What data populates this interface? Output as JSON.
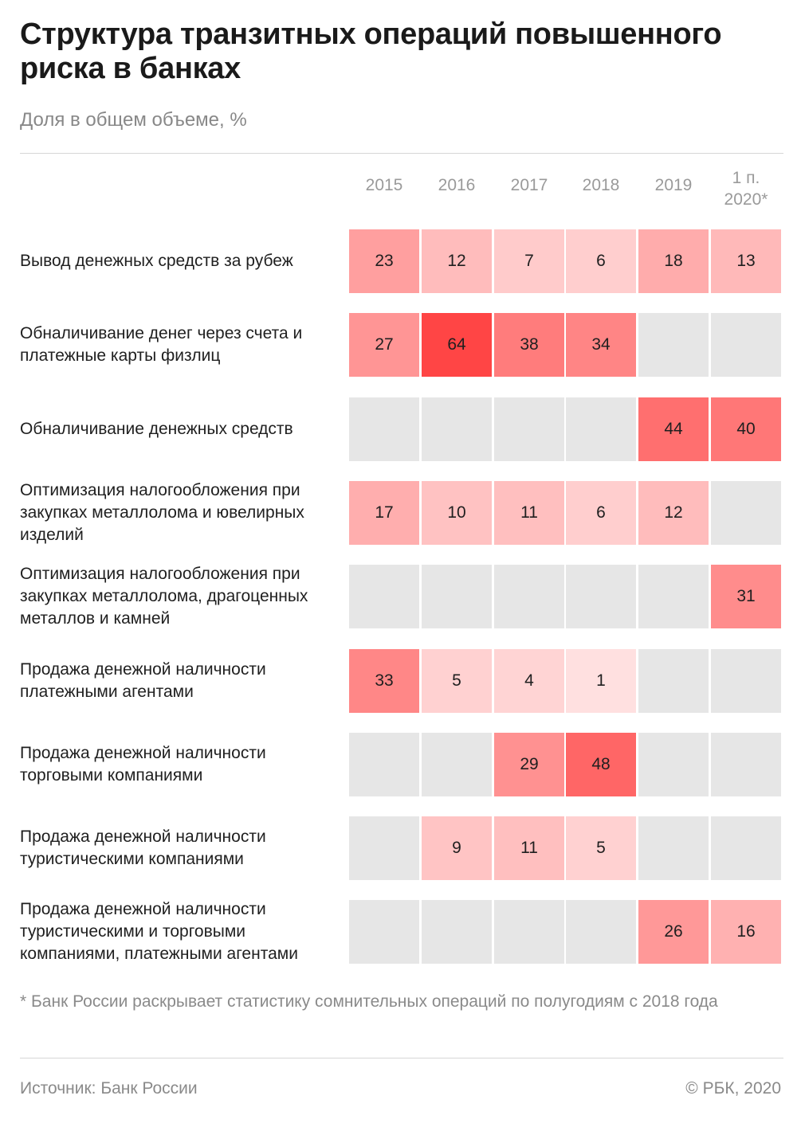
{
  "title": "Структура транзитных операций повышенного риска в банках",
  "subtitle": "Доля в общем объеме, %",
  "footnote": "* Банк России раскрывает статистику сомнительных операций по полугодиям с 2018 года",
  "source": "Источник: Банк России",
  "copyright": "© РБК, 2020",
  "colors": {
    "empty": "#e6e6e6",
    "max": "#ff4545",
    "min": "#ffe6e6"
  },
  "chart_data": {
    "type": "heatmap",
    "columns": [
      "2015",
      "2016",
      "2017",
      "2018",
      "2019",
      "1 п. 2020*"
    ],
    "rows": [
      {
        "label": "Вывод денежных средств за рубеж",
        "values": [
          23,
          12,
          7,
          6,
          18,
          13
        ]
      },
      {
        "label": "Обналичивание денег через счета и платежные карты физлиц",
        "values": [
          27,
          64,
          38,
          34,
          null,
          null
        ]
      },
      {
        "label": "Обналичивание денежных средств",
        "values": [
          null,
          null,
          null,
          null,
          44,
          40
        ]
      },
      {
        "label": "Оптимизация налогообложения при закупках металлолома и ювелирных изделий",
        "values": [
          17,
          10,
          11,
          6,
          12,
          null
        ]
      },
      {
        "label": "Оптимизация налогообложения при закупках металлолома, драгоценных металлов и камней",
        "values": [
          null,
          null,
          null,
          null,
          null,
          31
        ]
      },
      {
        "label": "Продажа денежной наличности платежными агентами",
        "values": [
          33,
          5,
          4,
          1,
          null,
          null
        ]
      },
      {
        "label": "Продажа денежной наличности торговыми компаниями",
        "values": [
          null,
          null,
          29,
          48,
          null,
          null
        ]
      },
      {
        "label": "Продажа денежной наличности туристическими компаниями",
        "values": [
          null,
          9,
          11,
          5,
          null,
          null
        ]
      },
      {
        "label": "Продажа денежной наличности туристическими и торговыми компаниями, платежными агентами",
        "values": [
          null,
          null,
          null,
          null,
          26,
          16
        ]
      }
    ]
  }
}
